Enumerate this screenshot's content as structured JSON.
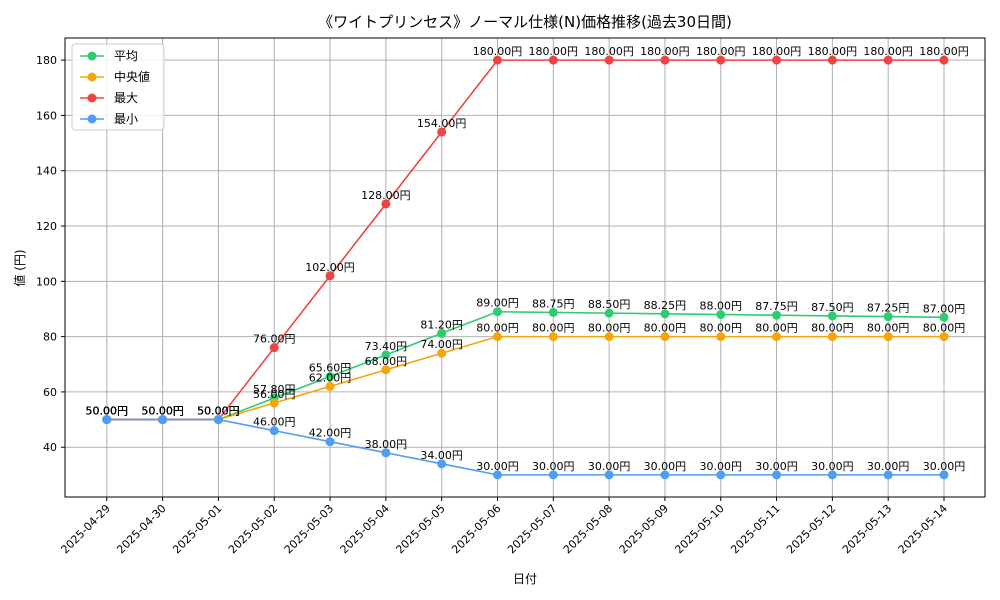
{
  "chart_data": {
    "type": "line",
    "title": "《ワイトプリンセス》ノーマル仕様(N)価格推移(過去30日間)",
    "xlabel": "日付",
    "ylabel": "値 (円)",
    "ylim": [
      22,
      188
    ],
    "yticks": [
      40,
      60,
      80,
      100,
      120,
      140,
      160,
      180
    ],
    "grid": true,
    "legend_position": "top-left",
    "value_suffix": "円",
    "categories": [
      "2025-04-29",
      "2025-04-30",
      "2025-05-01",
      "2025-05-02",
      "2025-05-03",
      "2025-05-04",
      "2025-05-05",
      "2025-05-06",
      "2025-05-07",
      "2025-05-08",
      "2025-05-09",
      "2025-05-10",
      "2025-05-11",
      "2025-05-12",
      "2025-05-13",
      "2025-05-14"
    ],
    "series": [
      {
        "name": "平均",
        "color": "#2ecc71",
        "values": [
          50,
          50,
          50,
          57.8,
          65.6,
          73.4,
          81.2,
          89,
          88.75,
          88.5,
          88.25,
          88,
          87.75,
          87.5,
          87.25,
          87
        ]
      },
      {
        "name": "中央値",
        "color": "#f5a50a",
        "values": [
          50,
          50,
          50,
          56,
          62,
          68,
          74,
          80,
          80,
          80,
          80,
          80,
          80,
          80,
          80,
          80
        ]
      },
      {
        "name": "最大",
        "color": "#ef4444",
        "values": [
          50,
          50,
          50,
          76,
          102,
          128,
          154,
          180,
          180,
          180,
          180,
          180,
          180,
          180,
          180,
          180
        ]
      },
      {
        "name": "最小",
        "color": "#4f9cf5",
        "values": [
          50,
          50,
          50,
          46,
          42,
          38,
          34,
          30,
          30,
          30,
          30,
          30,
          30,
          30,
          30,
          30
        ]
      }
    ]
  }
}
